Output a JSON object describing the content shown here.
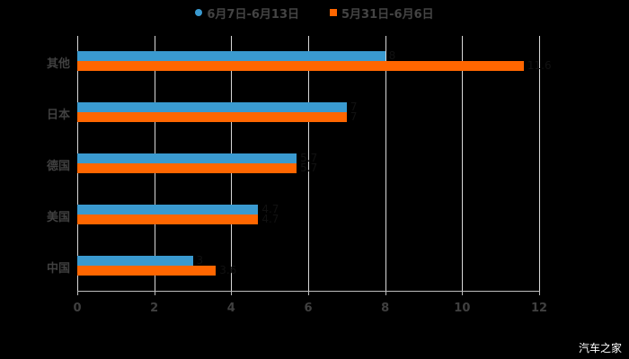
{
  "chart_data": {
    "type": "bar",
    "orientation": "horizontal",
    "title": "",
    "categories": [
      "其他",
      "日本",
      "德国",
      "美国",
      "中国"
    ],
    "series": [
      {
        "name": "6月7日-6月13日",
        "color": "#3a9ad0",
        "values": [
          8,
          7,
          5.7,
          4.7,
          3
        ]
      },
      {
        "name": "5月31日-6月6日",
        "color": "#ff6600",
        "values": [
          11.6,
          7,
          5.7,
          4.7,
          3.6
        ]
      }
    ],
    "xlabel": "",
    "ylabel": "",
    "xlim": [
      0,
      12
    ],
    "x_ticks": [
      "0",
      "2",
      "4",
      "6",
      "8",
      "10",
      "12"
    ],
    "grid": "vertical",
    "legend_position": "top"
  },
  "legend": {
    "items": [
      {
        "label": "6月7日-6月13日",
        "color": "#3a9ad0",
        "shape": "circle"
      },
      {
        "label": "5月31日-6月6日",
        "color": "#ff6600",
        "shape": "square"
      }
    ]
  },
  "watermark": "汽车之家"
}
